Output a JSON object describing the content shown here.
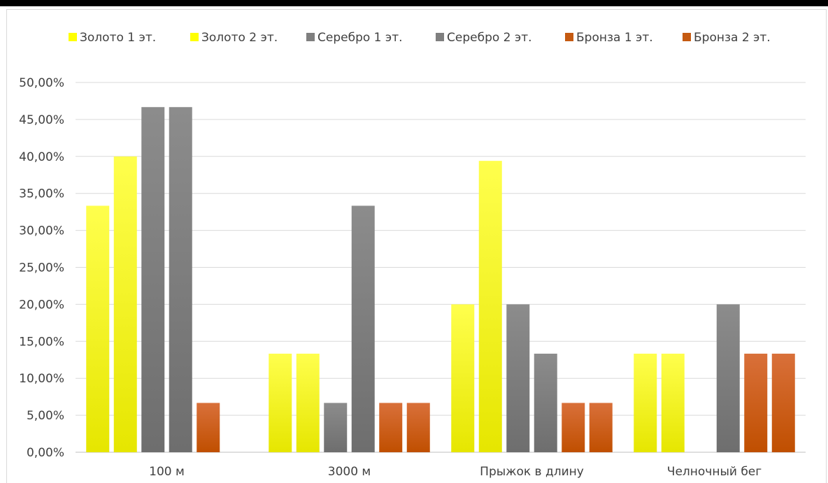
{
  "chart_data": {
    "type": "bar",
    "categories": [
      "100 м",
      "3000 м",
      "Прыжок в длину",
      "Челночный бег"
    ],
    "series": [
      {
        "name": "Золото 1 эт.",
        "values": [
          33.33,
          13.33,
          20.0,
          13.33
        ],
        "color": "#ffff00"
      },
      {
        "name": "Золото 2 эт.",
        "values": [
          40.0,
          13.33,
          39.4,
          13.33
        ],
        "color": "#ffff00"
      },
      {
        "name": "Серебро 1 эт.",
        "values": [
          46.67,
          6.67,
          20.0,
          0
        ],
        "color": "#7f7f7f"
      },
      {
        "name": "Серебро 2 эт.",
        "values": [
          46.67,
          33.33,
          13.33,
          20.0
        ],
        "color": "#7f7f7f"
      },
      {
        "name": "Бронза 1 эт.",
        "values": [
          6.67,
          6.67,
          6.67,
          13.33
        ],
        "color": "#c55a11"
      },
      {
        "name": "Бронза 2 эт.",
        "values": [
          0,
          6.67,
          6.67,
          13.33
        ],
        "color": "#c55a11"
      }
    ],
    "y_ticks": [
      "0,00%",
      "5,00%",
      "10,00%",
      "15,00%",
      "20,00%",
      "25,00%",
      "30,00%",
      "35,00%",
      "40,00%",
      "45,00%",
      "50,00%"
    ],
    "ylim": [
      0,
      50
    ],
    "grid": true,
    "legend_position": "top"
  }
}
